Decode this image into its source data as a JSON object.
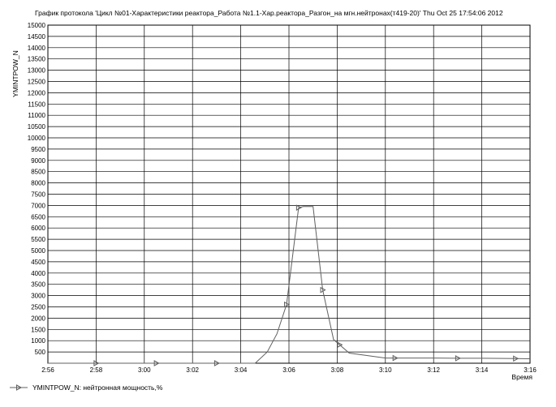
{
  "chart_data": {
    "type": "line",
    "title": "График протокола  'Цикл №01-Характеристики реактора_Работа №1.1-Хар.реактора_Разгон_на мгн.нейтронах(т419-20)'  Thu Oct 25 17:54:06 2012",
    "ylabel": "YMINTPOW_N",
    "xlabel": "Время",
    "x_ticks": [
      "2:56",
      "2:58",
      "3:00",
      "3:02",
      "3:04",
      "3:06",
      "3:08",
      "3:10",
      "3:12",
      "3:14",
      "3:16"
    ],
    "y_ticks": [
      500,
      1000,
      1500,
      2000,
      2500,
      3000,
      3500,
      4000,
      4500,
      5000,
      5500,
      6000,
      6500,
      7000,
      7500,
      8000,
      8500,
      9000,
      9500,
      10000,
      10500,
      11000,
      11500,
      12000,
      12500,
      13000,
      13500,
      14000,
      14500,
      15000
    ],
    "xlim": [
      176,
      196
    ],
    "ylim": [
      0,
      15000
    ],
    "grid": true,
    "legend_position": "bottom-left",
    "series": [
      {
        "name": "YMINTPOW_N: нейтронная мощность,%",
        "color": "#606060",
        "x": [
          176,
          178,
          180,
          183,
          184.6,
          185.1,
          185.5,
          185.9,
          186.4,
          186.6,
          187,
          187.4,
          187.85,
          188.5,
          190,
          191,
          192,
          193,
          194,
          195,
          196
        ],
        "y": [
          0,
          0,
          0,
          0,
          0,
          500,
          1300,
          2600,
          6900,
          6950,
          6950,
          3250,
          1050,
          450,
          230,
          230,
          230,
          220,
          220,
          210,
          200
        ],
        "markers_at": [
          178,
          180.5,
          183,
          185.9,
          186.4,
          187.4,
          188.1,
          190.4,
          193,
          195.4
        ]
      }
    ]
  }
}
